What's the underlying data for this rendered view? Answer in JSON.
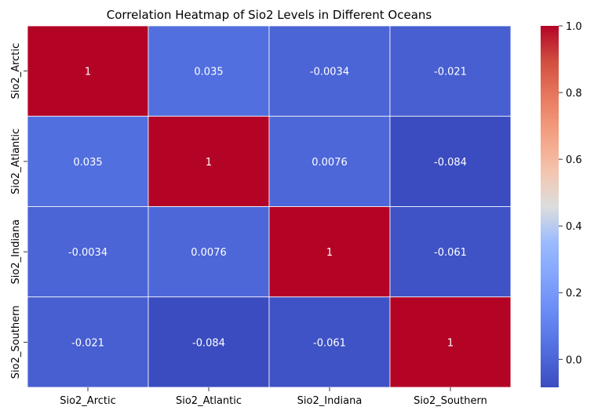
{
  "chart_data": {
    "type": "heatmap",
    "title": "Correlation Heatmap of Sio2 Levels in Different Oceans",
    "xlabel": "",
    "ylabel": "",
    "x_labels": [
      "Sio2_Arctic",
      "Sio2_Atlantic",
      "Sio2_Indiana",
      "Sio2_Southern"
    ],
    "y_labels": [
      "Sio2_Arctic",
      "Sio2_Atlantic",
      "Sio2_Indiana",
      "Sio2_Southern"
    ],
    "values": [
      [
        1,
        0.035,
        -0.0034,
        -0.021
      ],
      [
        0.035,
        1,
        0.0076,
        -0.084
      ],
      [
        -0.0034,
        0.0076,
        1,
        -0.061
      ],
      [
        -0.021,
        -0.084,
        -0.061,
        1
      ]
    ],
    "cell_labels": [
      [
        "1",
        "0.035",
        "-0.0034",
        "-0.021"
      ],
      [
        "0.035",
        "1",
        "0.0076",
        "-0.084"
      ],
      [
        "-0.0034",
        "0.0076",
        "1",
        "-0.061"
      ],
      [
        "-0.021",
        "-0.084",
        "-0.061",
        "1"
      ]
    ],
    "colormap": "coolwarm",
    "colorbar": {
      "vmin": -0.084,
      "vmax": 1.0,
      "ticks": [
        0.0,
        0.2,
        0.4,
        0.6,
        0.8,
        1.0
      ],
      "tick_labels": [
        "0.0",
        "0.2",
        "0.4",
        "0.6",
        "0.8",
        "1.0"
      ]
    },
    "grid_lines": true,
    "grid_color": "#ffffff",
    "annotation_color": "#ffffff",
    "legend": "colorbar-right"
  }
}
